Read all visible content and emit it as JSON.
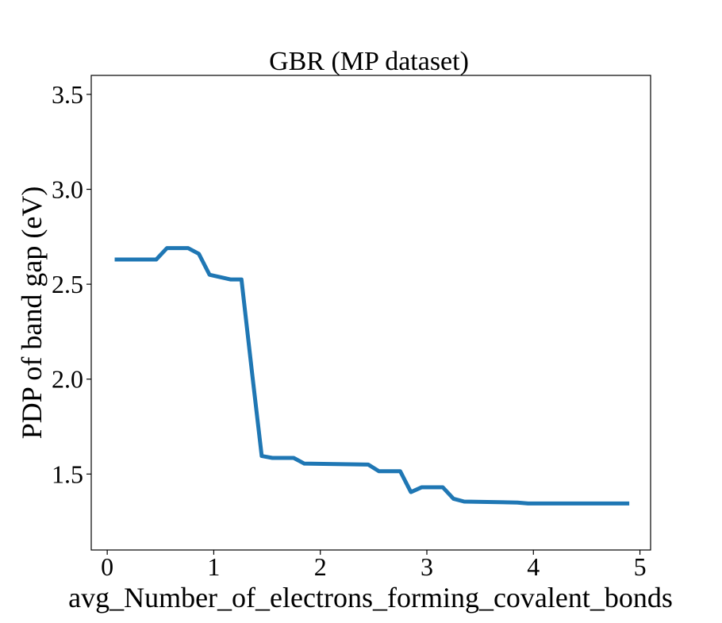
{
  "chart_data": {
    "type": "line",
    "title": "GBR (MP dataset)",
    "xlabel": "avg_Number_of_electrons_forming_covalent_bonds",
    "ylabel": "PDP of band gap (eV)",
    "xlim": [
      -0.15,
      5.1
    ],
    "ylim": [
      1.1,
      3.6
    ],
    "xticks": [
      {
        "value": 0,
        "label": "0"
      },
      {
        "value": 1,
        "label": "1"
      },
      {
        "value": 2,
        "label": "2"
      },
      {
        "value": 3,
        "label": "3"
      },
      {
        "value": 4,
        "label": "4"
      },
      {
        "value": 5,
        "label": "5"
      }
    ],
    "yticks": [
      {
        "value": 1.5,
        "label": "1.5"
      },
      {
        "value": 2.0,
        "label": "2.0"
      },
      {
        "value": 2.5,
        "label": "2.5"
      },
      {
        "value": 3.0,
        "label": "3.0"
      },
      {
        "value": 3.5,
        "label": "3.5"
      }
    ],
    "grid": false,
    "series": [
      {
        "color": "#1f77b4",
        "points": [
          {
            "x": 0.07,
            "y": 2.63
          },
          {
            "x": 0.46,
            "y": 2.63
          },
          {
            "x": 0.56,
            "y": 2.69
          },
          {
            "x": 0.76,
            "y": 2.69
          },
          {
            "x": 0.86,
            "y": 2.66
          },
          {
            "x": 0.96,
            "y": 2.55
          },
          {
            "x": 1.16,
            "y": 2.525
          },
          {
            "x": 1.26,
            "y": 2.525
          },
          {
            "x": 1.36,
            "y": 2.03
          },
          {
            "x": 1.45,
            "y": 1.595
          },
          {
            "x": 1.55,
            "y": 1.585
          },
          {
            "x": 1.75,
            "y": 1.585
          },
          {
            "x": 1.85,
            "y": 1.555
          },
          {
            "x": 2.45,
            "y": 1.55
          },
          {
            "x": 2.55,
            "y": 1.515
          },
          {
            "x": 2.75,
            "y": 1.515
          },
          {
            "x": 2.85,
            "y": 1.405
          },
          {
            "x": 2.95,
            "y": 1.43
          },
          {
            "x": 3.15,
            "y": 1.43
          },
          {
            "x": 3.25,
            "y": 1.37
          },
          {
            "x": 3.35,
            "y": 1.355
          },
          {
            "x": 3.85,
            "y": 1.35
          },
          {
            "x": 3.95,
            "y": 1.345
          },
          {
            "x": 4.9,
            "y": 1.345
          }
        ]
      }
    ]
  }
}
